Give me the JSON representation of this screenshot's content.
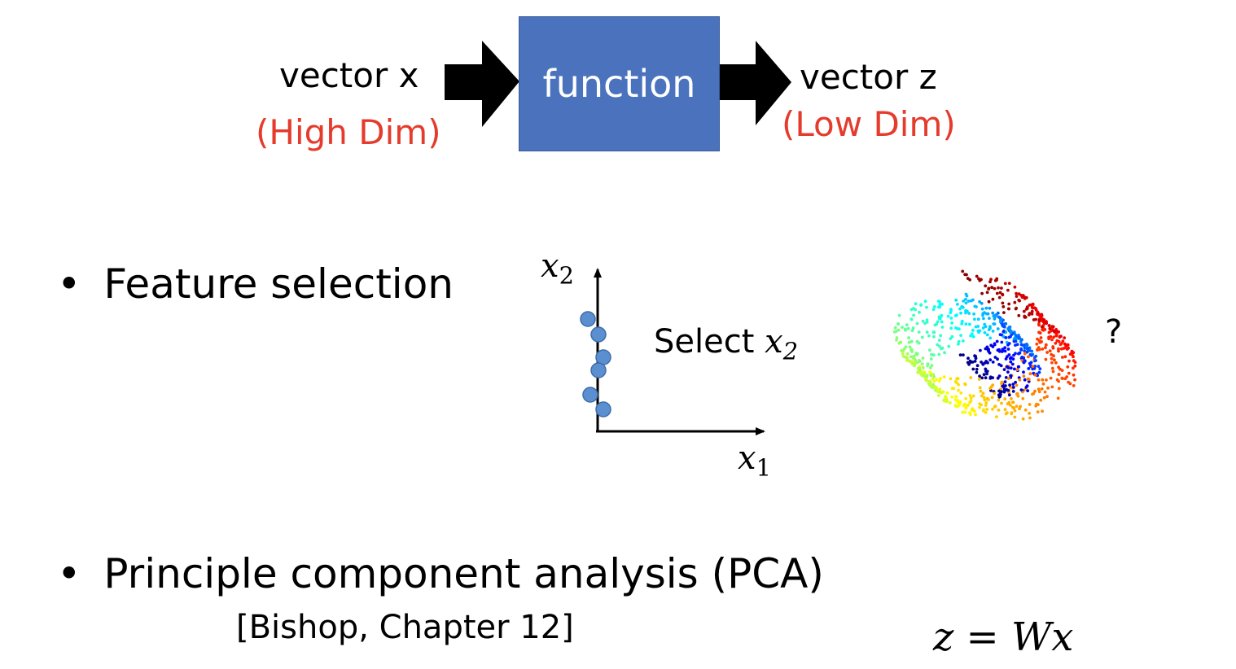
{
  "pipeline": {
    "input_label": "vector x",
    "input_note": "(High Dim)",
    "function_label": "function",
    "output_label": "vector z",
    "output_note": "(Low Dim)"
  },
  "bullets": [
    {
      "text": "Feature selection"
    },
    {
      "text": "Principle component analysis (PCA)",
      "reference": "[Bishop, Chapter 12]"
    }
  ],
  "feature_plot": {
    "y_axis": {
      "var": "x",
      "sub": "2"
    },
    "x_axis": {
      "var": "x",
      "sub": "1"
    },
    "select_text": "Select ",
    "select_var": "x",
    "select_sub": "2",
    "point_color": "#5b8fd0"
  },
  "manifold": {
    "question_mark": "?"
  },
  "formula": "z = Wx",
  "colors": {
    "accent_red": "#e53b2c",
    "function_box": "#4a72bd"
  }
}
